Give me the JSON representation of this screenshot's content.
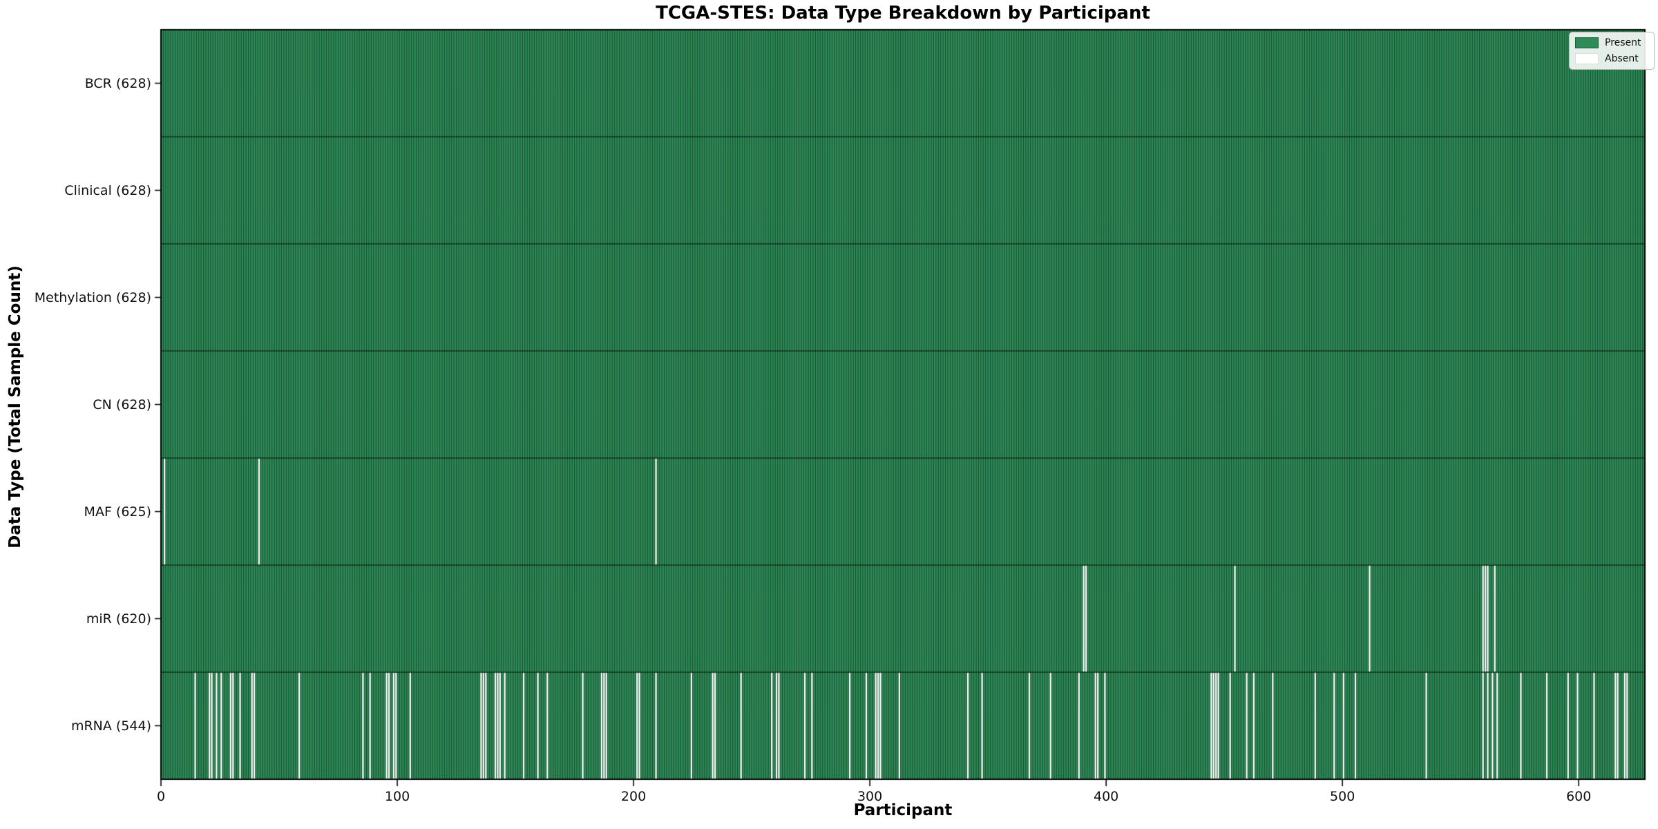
{
  "chart_data": {
    "type": "heatmap",
    "title": "TCGA-STES: Data Type Breakdown by Participant",
    "xlabel": "Participant",
    "ylabel": "Data Type (Total Sample Count)",
    "n_participants": 628,
    "x_ticks": [
      0,
      100,
      200,
      300,
      400,
      500,
      600
    ],
    "x_range": [
      0,
      628
    ],
    "grid": false,
    "legend_position": "upper right",
    "legend": [
      {
        "label": "Present",
        "color": "#2e8b57"
      },
      {
        "label": "Absent",
        "color": "#ffffff"
      }
    ],
    "colors": {
      "present": "#2f8b58",
      "absent": "#ffffff",
      "bar_edge": "rgba(10,38,24,0.65)",
      "plot_border": "#000000"
    },
    "rows": [
      {
        "label": "BCR",
        "total": 628,
        "display": "BCR (628)",
        "absent_participants": []
      },
      {
        "label": "Clinical",
        "total": 628,
        "display": "Clinical (628)",
        "absent_participants": []
      },
      {
        "label": "Methylation",
        "total": 628,
        "display": "Methylation (628)",
        "absent_participants": []
      },
      {
        "label": "CN",
        "total": 628,
        "display": "CN (628)",
        "absent_participants": []
      },
      {
        "label": "MAF",
        "total": 625,
        "display": "MAF (625)",
        "absent_participants": [
          1,
          41,
          209
        ]
      },
      {
        "label": "miR",
        "total": 620,
        "display": "miR (620)",
        "absent_participants": [
          390,
          391,
          454,
          511,
          559,
          560,
          561,
          564
        ]
      },
      {
        "label": "mRNA",
        "total": 544,
        "display": "mRNA (544)",
        "absent_participants": [
          14,
          20,
          21,
          23,
          25,
          29,
          30,
          33,
          38,
          39,
          58,
          85,
          88,
          95,
          96,
          98,
          99,
          105,
          135,
          136,
          137,
          141,
          142,
          143,
          145,
          153,
          159,
          163,
          178,
          186,
          187,
          188,
          201,
          202,
          209,
          224,
          233,
          234,
          245,
          258,
          260,
          261,
          272,
          275,
          291,
          298,
          302,
          303,
          304,
          312,
          341,
          347,
          367,
          376,
          388,
          395,
          396,
          399,
          444,
          445,
          446,
          447,
          452,
          459,
          462,
          470,
          488,
          496,
          500,
          505,
          535,
          559,
          561,
          563,
          565,
          575,
          586,
          595,
          599,
          606,
          615,
          616,
          619,
          620
        ]
      }
    ]
  }
}
